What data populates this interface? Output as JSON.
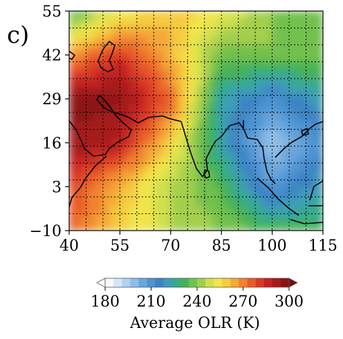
{
  "panel_label": "c)",
  "colorbar": {
    "title": "Average OLR (K)",
    "ticks": [
      "180",
      "210",
      "240",
      "270",
      "300"
    ],
    "colors": [
      "#f4f8fd",
      "#d6e6f6",
      "#b2d2ef",
      "#8fbde6",
      "#6aa6dc",
      "#4d94d2",
      "#3c83c4",
      "#3d9db8",
      "#37aa8c",
      "#46b257",
      "#72c04e",
      "#a3cf4e",
      "#cfe04d",
      "#f1e44c",
      "#f6cb3f",
      "#f5a737",
      "#f1822f",
      "#e95c2a",
      "#d93a25",
      "#c22222",
      "#a51b1c",
      "#8b1313"
    ],
    "under_color": "#ffffff",
    "over_color": "#7a0c0c"
  },
  "chart_data": {
    "type": "heatmap",
    "title": "",
    "xlabel": "",
    "ylabel": "",
    "x_ticks": [
      "40",
      "55",
      "70",
      "85",
      "100",
      "115"
    ],
    "y_ticks": [
      "−10",
      "3",
      "16",
      "29",
      "42",
      "55"
    ],
    "xlim": [
      40,
      115
    ],
    "ylim": [
      -10,
      55
    ],
    "grid": "dotted",
    "value_range": [
      180,
      300
    ],
    "lon": [
      40,
      55,
      70,
      85,
      100,
      115
    ],
    "lat": [
      55,
      42,
      29,
      16,
      3,
      -10
    ],
    "values": [
      [
        232,
        250,
        262,
        252,
        240,
        240
      ],
      [
        265,
        282,
        262,
        238,
        240,
        238
      ],
      [
        298,
        296,
        275,
        222,
        212,
        222
      ],
      [
        294,
        288,
        258,
        222,
        196,
        212
      ],
      [
        280,
        262,
        244,
        234,
        208,
        222
      ],
      [
        276,
        258,
        246,
        240,
        232,
        232
      ]
    ]
  }
}
